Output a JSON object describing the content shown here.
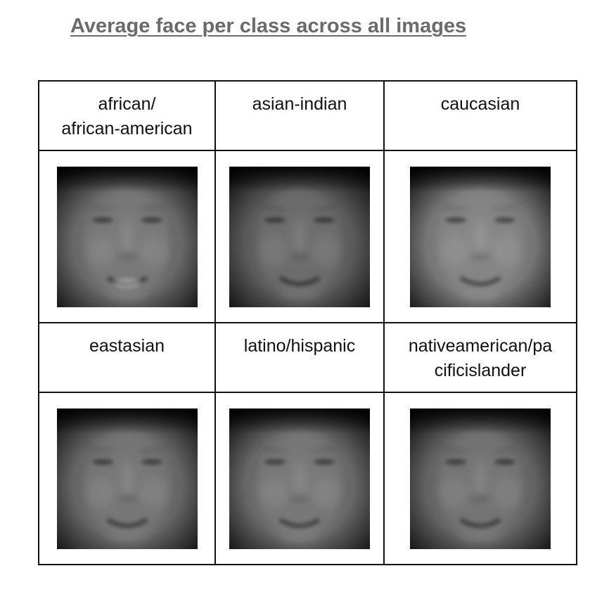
{
  "title": "Average face per class across all images",
  "classes": [
    {
      "label": "african/\nafrican-american",
      "tone": "#6d6d6d",
      "teeth": true
    },
    {
      "label": "asian-indian",
      "tone": "#5f5f5f",
      "teeth": false
    },
    {
      "label": "caucasian",
      "tone": "#7c7c7c",
      "teeth": false
    },
    {
      "label": "eastasian",
      "tone": "#6a6a6a",
      "teeth": false
    },
    {
      "label": "latino/hispanic",
      "tone": "#6c6c6c",
      "teeth": false
    },
    {
      "label": "nativeamerican/pa\ncificislander",
      "tone": "#686868",
      "teeth": false
    }
  ]
}
